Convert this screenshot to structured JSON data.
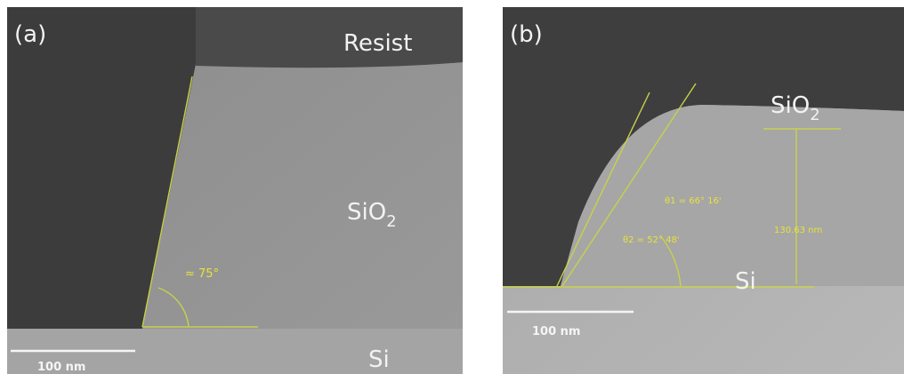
{
  "panel_a": {
    "label": "(a)",
    "resist": "Resist",
    "oxide": {
      "text": "SiO",
      "subscript": "2"
    },
    "angle": "≈ 75°",
    "substrate": "Si",
    "scale_bar": "100 nm"
  },
  "panel_b": {
    "label": "(b)",
    "oxide": {
      "text": "SiO",
      "subscript": "2"
    },
    "angle_1": "θ1 = 66° 16'",
    "angle_2": "θ2 = 52° 48'",
    "height": "130.63 nm",
    "substrate": "Si",
    "scale_bar": "100 nm"
  }
}
